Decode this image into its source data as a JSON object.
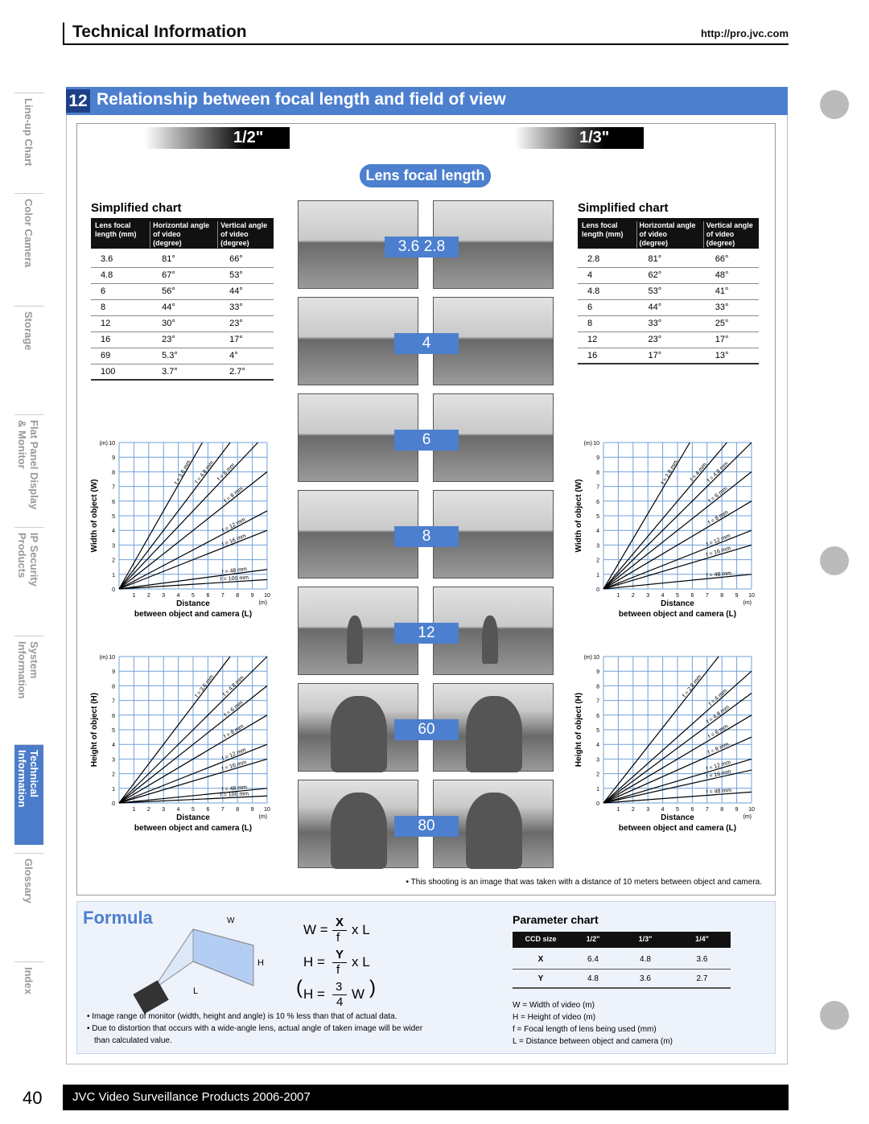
{
  "header": {
    "title": "Technical Information",
    "url": "http://pro.jvc.com"
  },
  "sidebar": {
    "tabs": [
      [
        "Line-up Chart"
      ],
      [
        "Color Camera"
      ],
      [
        "Storage"
      ],
      [
        "Flat Panel Display",
        "& Monitor"
      ],
      [
        "IP Security",
        "Products"
      ],
      [
        "System",
        "Information"
      ],
      [
        "Technical",
        "Information"
      ],
      [
        "Glossary"
      ],
      [
        "Index"
      ]
    ]
  },
  "section": {
    "number": "12",
    "title": "Relationship between focal length and field of view"
  },
  "formats": [
    "1/2\"",
    "1/3\""
  ],
  "lens_focal_length": "Lens focal length",
  "tables": [
    {
      "title": "Simplified chart",
      "headers": [
        "Lens focal length (mm)",
        "Horizontal angle of video (degree)",
        "Vertical angle of video (degree)"
      ],
      "rows": [
        [
          "3.6",
          "81°",
          "66°"
        ],
        [
          "4.8",
          "67°",
          "53°"
        ],
        [
          "6",
          "56°",
          "44°"
        ],
        [
          "8",
          "44°",
          "33°"
        ],
        [
          "12",
          "30°",
          "23°"
        ],
        [
          "16",
          "23°",
          "17°"
        ],
        [
          "69",
          "5.3°",
          "4°"
        ],
        [
          "100",
          "3.7°",
          "2.7°"
        ]
      ]
    },
    {
      "title": "Simplified chart",
      "headers": [
        "Lens focal length (mm)",
        "Horizontal angle of video (degree)",
        "Vertical angle of video (degree)"
      ],
      "rows": [
        [
          "2.8",
          "81°",
          "66°"
        ],
        [
          "4",
          "62°",
          "48°"
        ],
        [
          "4.8",
          "53°",
          "41°"
        ],
        [
          "6",
          "44°",
          "33°"
        ],
        [
          "8",
          "33°",
          "25°"
        ],
        [
          "12",
          "23°",
          "17°"
        ],
        [
          "16",
          "17°",
          "13°"
        ]
      ]
    }
  ],
  "photo_labels": [
    [
      "3.6",
      "2.8"
    ],
    [
      "4"
    ],
    [
      "6"
    ],
    [
      "8"
    ],
    [
      "12"
    ],
    [
      "60"
    ],
    [
      "80"
    ]
  ],
  "graphs": [
    {
      "y_label": "Width of object (W)",
      "unit": "(m)",
      "x_label": "Distance",
      "x_sublabel": "between object and camera (L)",
      "ticks": [
        0,
        1,
        2,
        3,
        4,
        5,
        6,
        7,
        8,
        9,
        10
      ],
      "lines": [
        "f = 3.6 mm",
        "f = 4.8 mm",
        "f = 6 mm",
        "f = 8 mm",
        "f = 12 mm",
        "f = 16 mm",
        "f = 48 mm",
        "f = 100 mm"
      ]
    },
    {
      "y_label": "Width of object (W)",
      "unit": "(m)",
      "x_label": "Distance",
      "x_sublabel": "between object and camera (L)",
      "ticks": [
        0,
        1,
        2,
        3,
        4,
        5,
        6,
        7,
        8,
        9,
        10
      ],
      "lines": [
        "f = 2.8 mm",
        "f = 4 mm",
        "f = 4.8 mm",
        "f = 6 mm",
        "f = 8 mm",
        "f = 12 mm",
        "f = 16 mm",
        "f = 48 mm"
      ]
    },
    {
      "y_label": "Height of object (H)",
      "unit": "(m)",
      "x_label": "Distance",
      "x_sublabel": "between object and camera (L)",
      "ticks": [
        0,
        1,
        2,
        3,
        4,
        5,
        6,
        7,
        8,
        9,
        10
      ],
      "lines": [
        "f = 3.6 mm",
        "f = 4.8 mm",
        "f = 6 mm",
        "f = 8 mm",
        "f = 12 mm",
        "f = 16 mm",
        "f = 48 mm",
        "f = 100 mm"
      ]
    },
    {
      "y_label": "Height of object (H)",
      "unit": "(m)",
      "x_label": "Distance",
      "x_sublabel": "between object and camera (L)",
      "ticks": [
        0,
        1,
        2,
        3,
        4,
        5,
        6,
        7,
        8,
        9,
        10
      ],
      "lines": [
        "f = 2.8 mm",
        "f = 4 mm",
        "f = 4.8 mm",
        "f = 6 mm",
        "f = 8 mm",
        "f = 12 mm",
        "f = 16 mm",
        "f = 48 mm"
      ]
    }
  ],
  "caption": "• This shooting is an image that was taken with a distance of 10 meters between object and camera.",
  "formula": {
    "title": "Formula",
    "diagram_labels": [
      "W",
      "H",
      "L"
    ],
    "equations": [
      [
        "W =",
        "X",
        "f",
        "x L"
      ],
      [
        "H =",
        "Y",
        "f",
        "x L"
      ],
      [
        "H =",
        "3",
        "4",
        "W"
      ]
    ],
    "notes": [
      "• Image range of monitor (width, height and angle) is 10 % less than that of actual data.",
      "• Due to distortion that occurs with a wide-angle lens, actual angle of taken image will be wider",
      "than calculated value."
    ]
  },
  "parameter_chart": {
    "title": "Parameter chart",
    "headers": [
      "CCD size",
      "1/2\"",
      "1/3\"",
      "1/4\""
    ],
    "rows": [
      [
        "X",
        "6.4",
        "4.8",
        "3.6"
      ],
      [
        "Y",
        "4.8",
        "3.6",
        "2.7"
      ]
    ],
    "definitions": [
      "W = Width of video (m)",
      "H = Height of video (m)",
      "f = Focal length of lens being used (mm)",
      "L = Distance between object and camera (m)"
    ]
  },
  "footer": {
    "page": "40",
    "text": "JVC Video Surveillance Products 2006-2007"
  }
}
